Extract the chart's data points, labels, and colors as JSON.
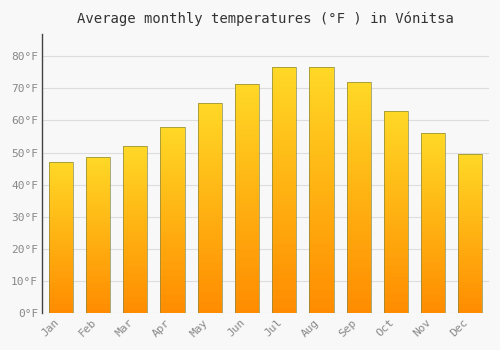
{
  "title": "Average monthly temperatures (°F ) in Vónitsa",
  "months": [
    "Jan",
    "Feb",
    "Mar",
    "Apr",
    "May",
    "Jun",
    "Jul",
    "Aug",
    "Sep",
    "Oct",
    "Nov",
    "Dec"
  ],
  "values": [
    47,
    48.5,
    52,
    58,
    65.5,
    71.5,
    76.5,
    76.5,
    72,
    63,
    56,
    49.5
  ],
  "bar_color": "#FFAA00",
  "bar_color_light": "#FFD060",
  "bar_edge_color": "#888844",
  "background_color": "#F8F8F8",
  "grid_color": "#DDDDDD",
  "text_color": "#888888",
  "yticks": [
    0,
    10,
    20,
    30,
    40,
    50,
    60,
    70,
    80
  ],
  "ytick_labels": [
    "0°F",
    "10°F",
    "20°F",
    "30°F",
    "40°F",
    "50°F",
    "60°F",
    "70°F",
    "80°F"
  ],
  "ylim": [
    0,
    87
  ],
  "title_fontsize": 10,
  "tick_fontsize": 8,
  "font_family": "monospace"
}
